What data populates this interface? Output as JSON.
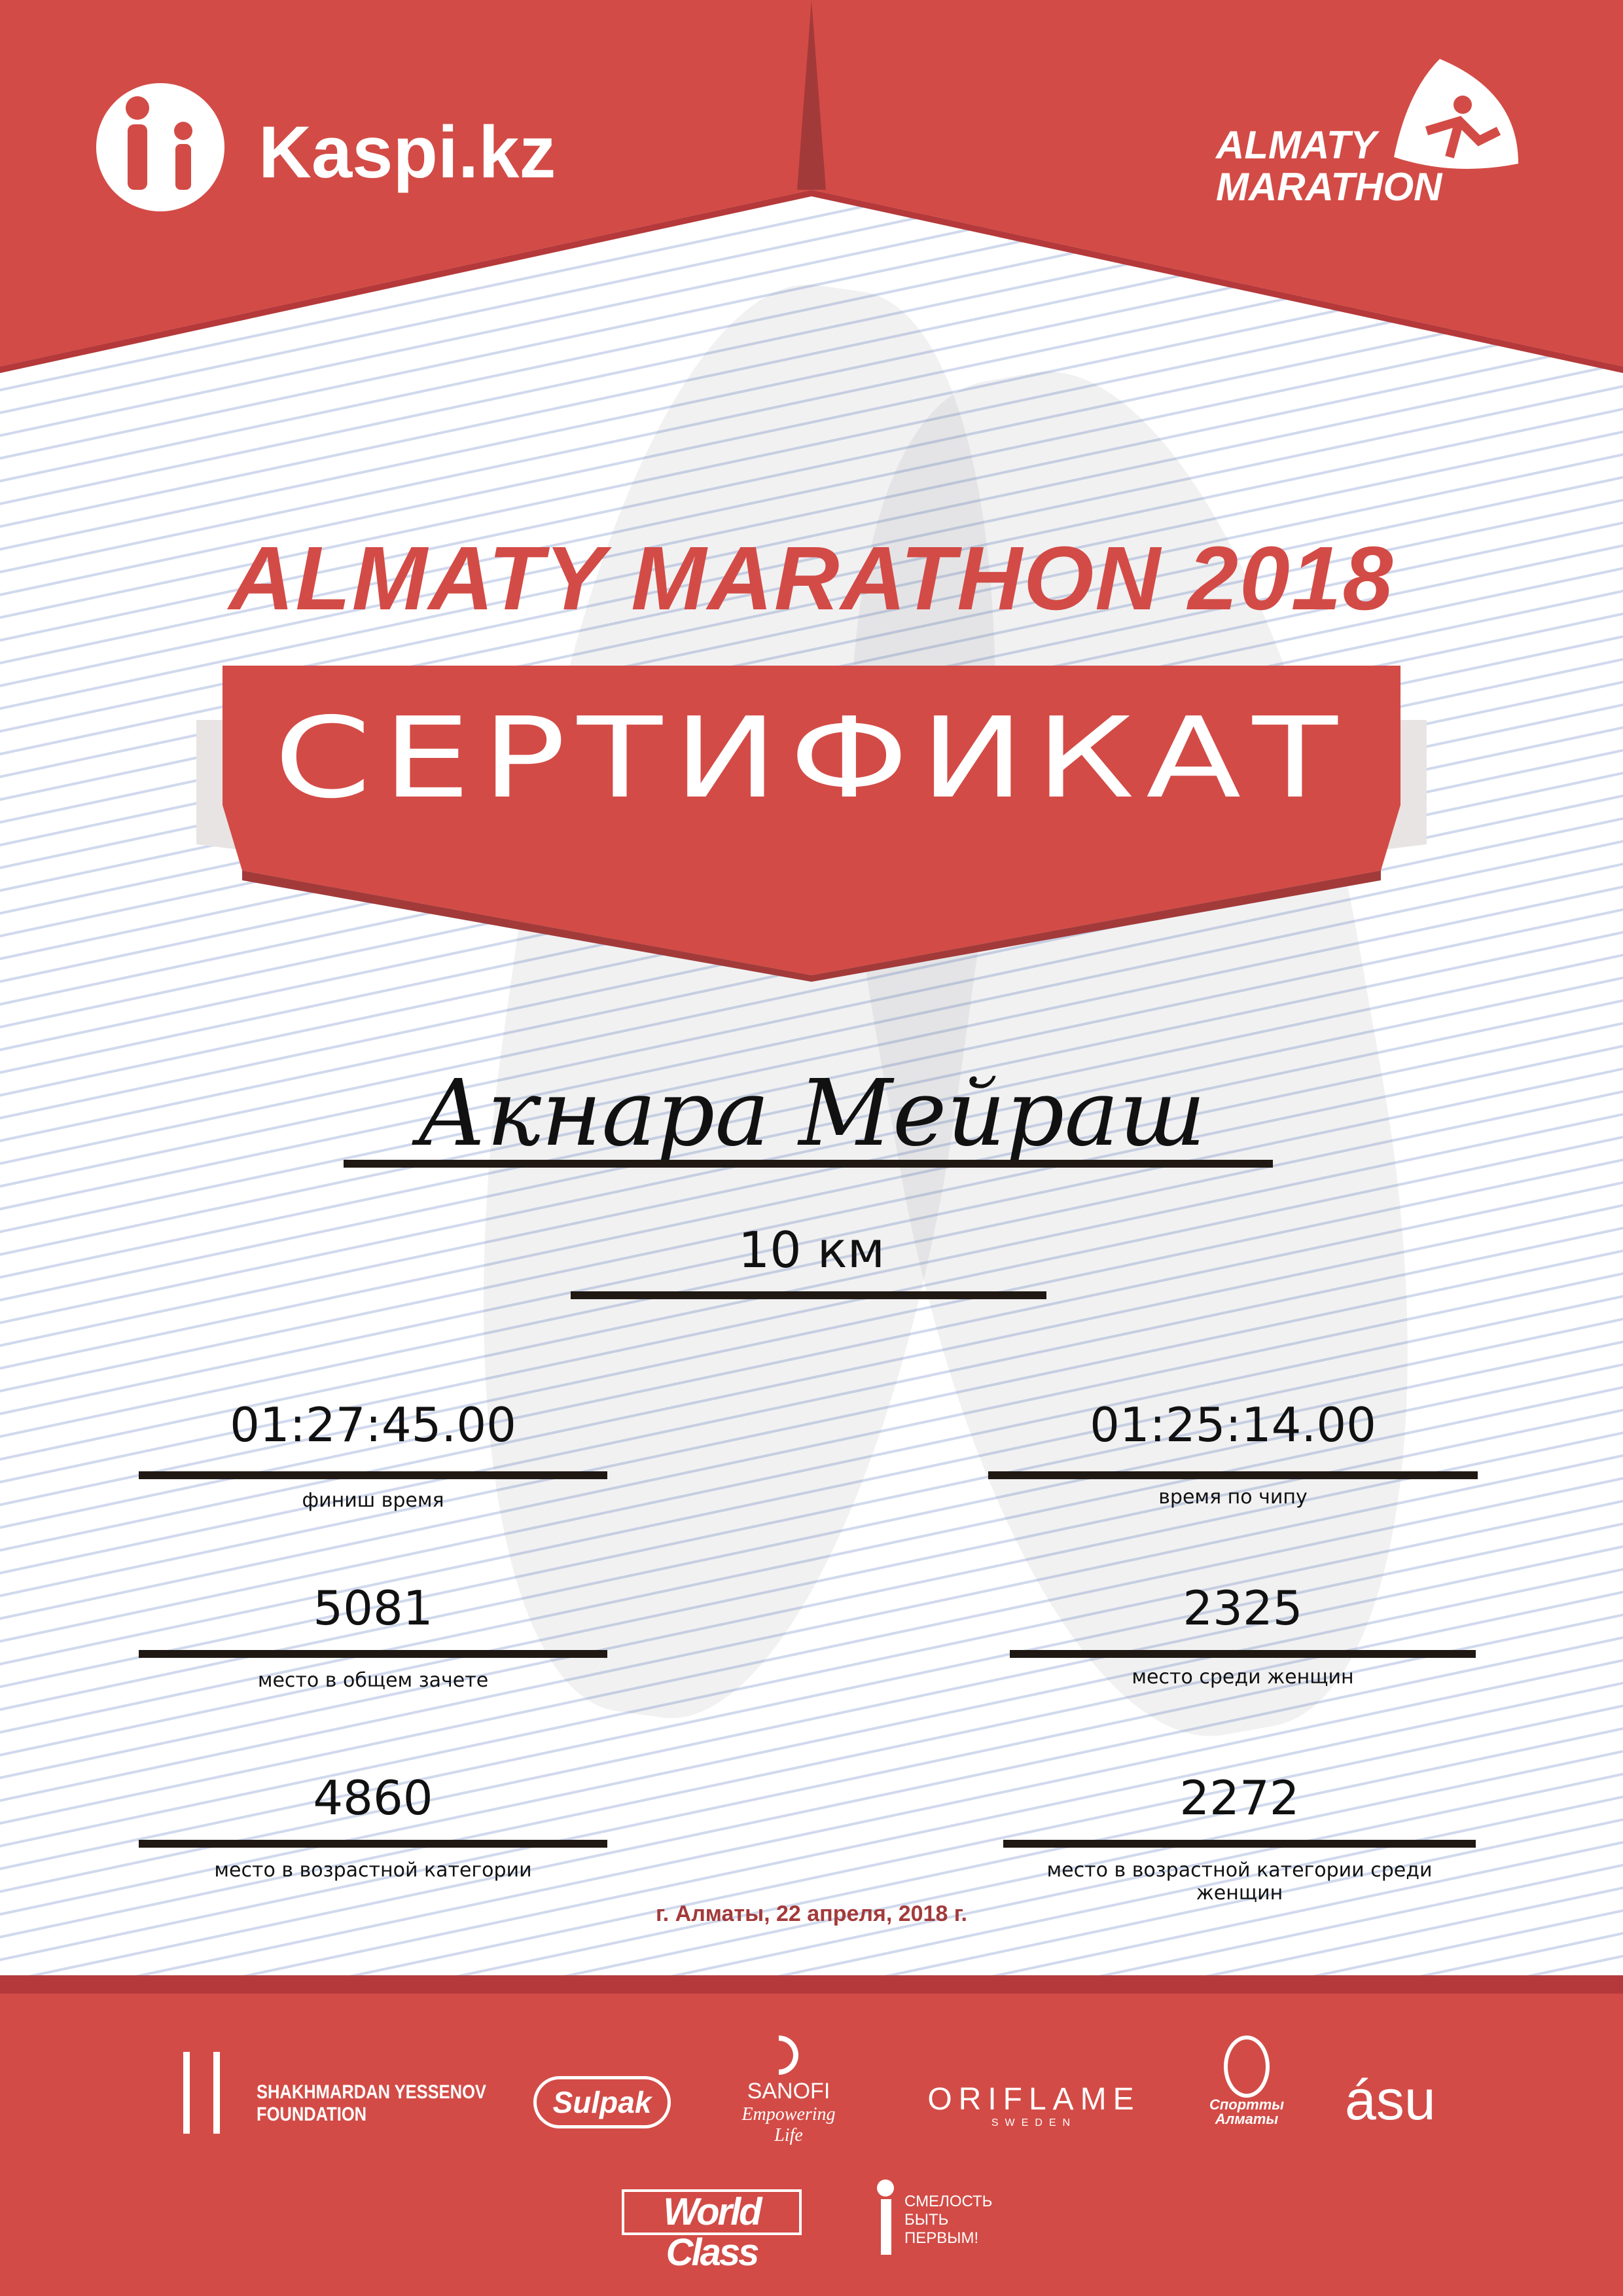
{
  "header": {
    "sponsor_logo": "Kaspi.kz",
    "event_logo_line1": "ALMATY",
    "event_logo_line2": "MARATHON"
  },
  "title": "ALMATY MARATHON 2018",
  "banner": "СЕРТИФИКАТ",
  "participant": {
    "name": "Акнара Мейраш",
    "distance": "10 км"
  },
  "results": {
    "left": [
      {
        "value": "01:27:45.00",
        "label": "финиш время"
      },
      {
        "value": "5081",
        "label": "место в общем зачете"
      },
      {
        "value": "4860",
        "label": "место в возрастной категории"
      }
    ],
    "right": [
      {
        "value": "01:25:14.00",
        "label": "время по чипу"
      },
      {
        "value": "2325",
        "label": "место среди женщин"
      },
      {
        "value": "2272",
        "label": "место в возрастной категории среди женщин"
      }
    ]
  },
  "date": "г. Алматы, 22 апреля, 2018 г.",
  "sponsors": {
    "yessenov_line1": "SHAKHMARDAN YESSENOV",
    "yessenov_line2": "FOUNDATION",
    "sulpak": "Sulpak",
    "sanofi": "SANOFI",
    "sanofi_tag": "Empowering Life",
    "oriflame": "ORIFLAME",
    "oriflame_sub": "SWEDEN",
    "sport_almaty_line1": "Спортты",
    "sport_almaty_line2": "Алматы",
    "asu": "ásu",
    "worldclass": "World Class",
    "fund_line1": "СМЕЛОСТЬ",
    "fund_line2": "БЫТЬ",
    "fund_line3": "ПЕРВЫМ!"
  },
  "colors": {
    "red": "#d34b46",
    "dark_red": "#a33a3a",
    "line": "#201812"
  }
}
